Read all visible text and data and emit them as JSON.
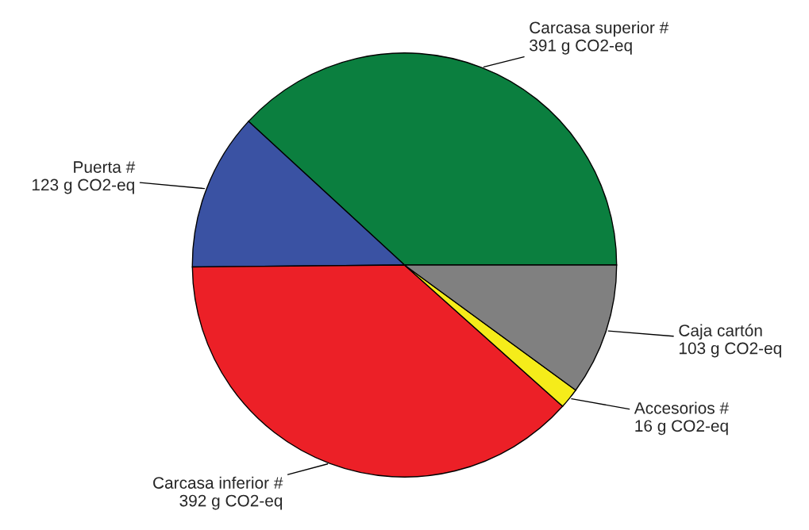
{
  "chart_data": {
    "type": "pie",
    "categories": [
      "Carcasa superior #",
      "Puerta #",
      "Carcasa inferior #",
      "Accesorios #",
      "Caja cartón"
    ],
    "values": [
      391,
      123,
      392,
      16,
      103
    ],
    "value_labels": [
      "391 g CO2-eq",
      "123 g CO2-eq",
      "392 g CO2-eq",
      "16 g CO2-eq",
      "103 g CO2-eq"
    ],
    "colors": [
      "#0b7f3f",
      "#3a52a3",
      "#ec2027",
      "#f5ec1a",
      "#808080"
    ]
  }
}
